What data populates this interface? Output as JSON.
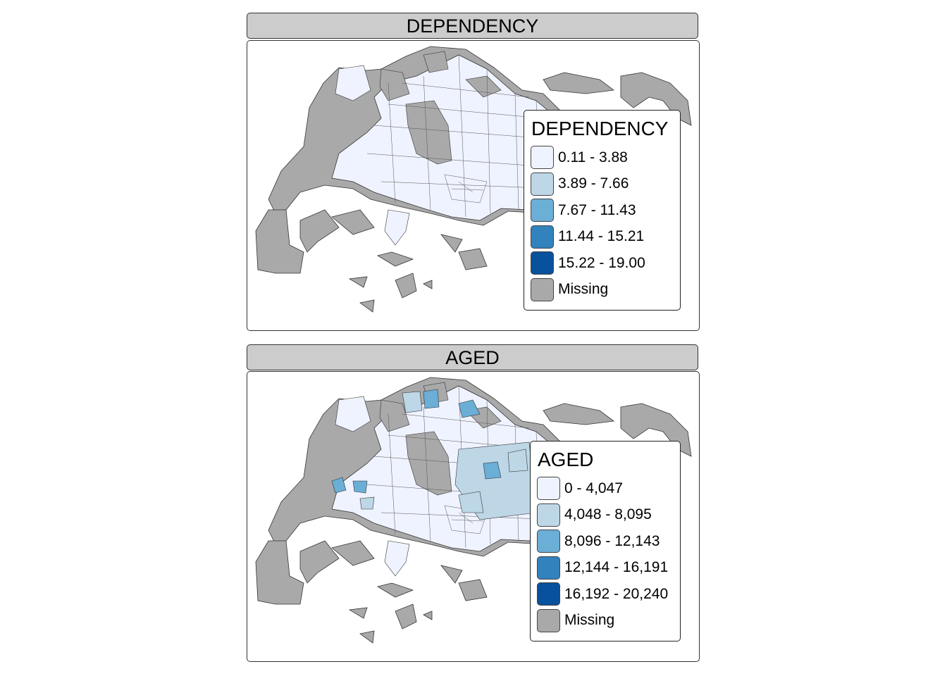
{
  "panels": [
    {
      "title": "DEPENDENCY",
      "legend": {
        "title": "DEPENDENCY",
        "items": [
          {
            "label": "0.11 - 3.88",
            "color": "#EFF3FF"
          },
          {
            "label": "3.89 - 7.66",
            "color": "#BDD7E7"
          },
          {
            "label": "7.67 - 11.43",
            "color": "#6BAED6"
          },
          {
            "label": "11.44 - 15.21",
            "color": "#3182BD"
          },
          {
            "label": "15.22 - 19.00",
            "color": "#08519C"
          },
          {
            "label": "Missing",
            "color": "#A9A9A9"
          }
        ]
      }
    },
    {
      "title": "AGED",
      "legend": {
        "title": "AGED",
        "items": [
          {
            "label": "0 - 4,047",
            "color": "#EFF3FF"
          },
          {
            "label": "4,048 - 8,095",
            "color": "#BDD7E7"
          },
          {
            "label": "8,096 - 12,143",
            "color": "#6BAED6"
          },
          {
            "label": "12,144 - 16,191",
            "color": "#3182BD"
          },
          {
            "label": "16,192 - 20,240",
            "color": "#08519C"
          },
          {
            "label": "Missing",
            "color": "#A9A9A9"
          }
        ]
      }
    }
  ]
}
